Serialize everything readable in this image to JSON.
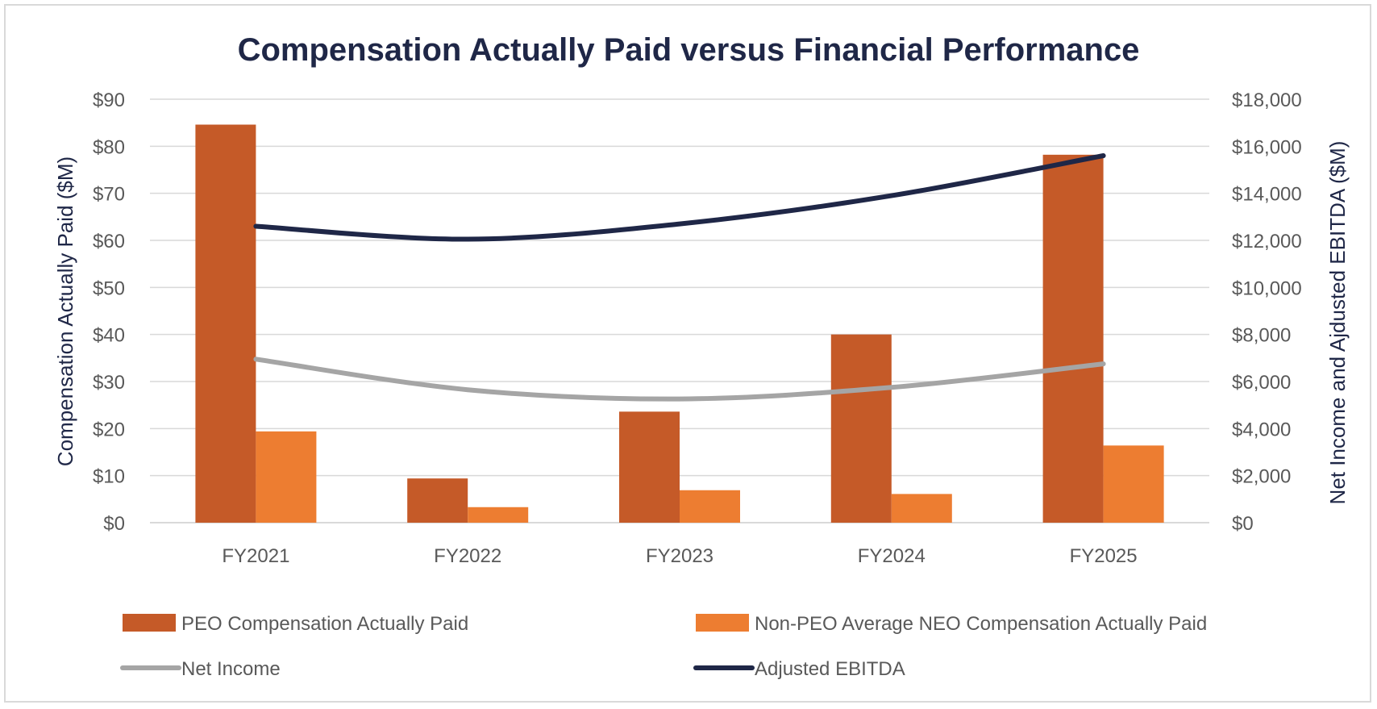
{
  "chart_data": {
    "type": "bar",
    "title": "Compensation Actually Paid versus Financial Performance",
    "categories": [
      "FY2021",
      "FY2022",
      "FY2023",
      "FY2024",
      "FY2025"
    ],
    "left_axis": {
      "label": "Compensation Actually Paid ($M)",
      "range": [
        0,
        90
      ],
      "ticks": [
        0,
        10,
        20,
        30,
        40,
        50,
        60,
        70,
        80,
        90
      ],
      "tick_labels": [
        "$0",
        "$10",
        "$20",
        "$30",
        "$40",
        "$50",
        "$60",
        "$70",
        "$80",
        "$90"
      ]
    },
    "right_axis": {
      "label": "Net Income and Ajdusted EBITDA ($M)",
      "range": [
        0,
        18000
      ],
      "ticks": [
        0,
        2000,
        4000,
        6000,
        8000,
        10000,
        12000,
        14000,
        16000,
        18000
      ],
      "tick_labels": [
        "$0",
        "$2,000",
        "$4,000",
        "$6,000",
        "$8,000",
        "$10,000",
        "$12,000",
        "$14,000",
        "$16,000",
        "$18,000"
      ]
    },
    "grid": true,
    "legend_position": "bottom",
    "series": [
      {
        "name": "PEO Compensation Actually Paid",
        "kind": "bar",
        "axis": "left",
        "color": "#c55a28",
        "values": [
          84.6,
          9.4,
          23.6,
          40.0,
          78.2
        ]
      },
      {
        "name": "Non-PEO Average NEO Compensation Actually Paid",
        "kind": "bar",
        "axis": "left",
        "color": "#ed7d31",
        "values": [
          19.4,
          3.3,
          6.9,
          6.1,
          16.4
        ]
      },
      {
        "name": "Net Income",
        "kind": "line",
        "axis": "right",
        "color": "#a5a5a5",
        "values": [
          6950,
          5650,
          5260,
          5750,
          6750
        ]
      },
      {
        "name": "Adjusted EBITDA",
        "kind": "line",
        "axis": "right",
        "color": "#1f2747",
        "values": [
          12600,
          12050,
          12700,
          13900,
          15600
        ]
      }
    ],
    "colors": {
      "title": "#1f2747",
      "axis_title": "#1f2747",
      "gridline": "#d9d9d9",
      "tick_text": "#595959"
    }
  }
}
